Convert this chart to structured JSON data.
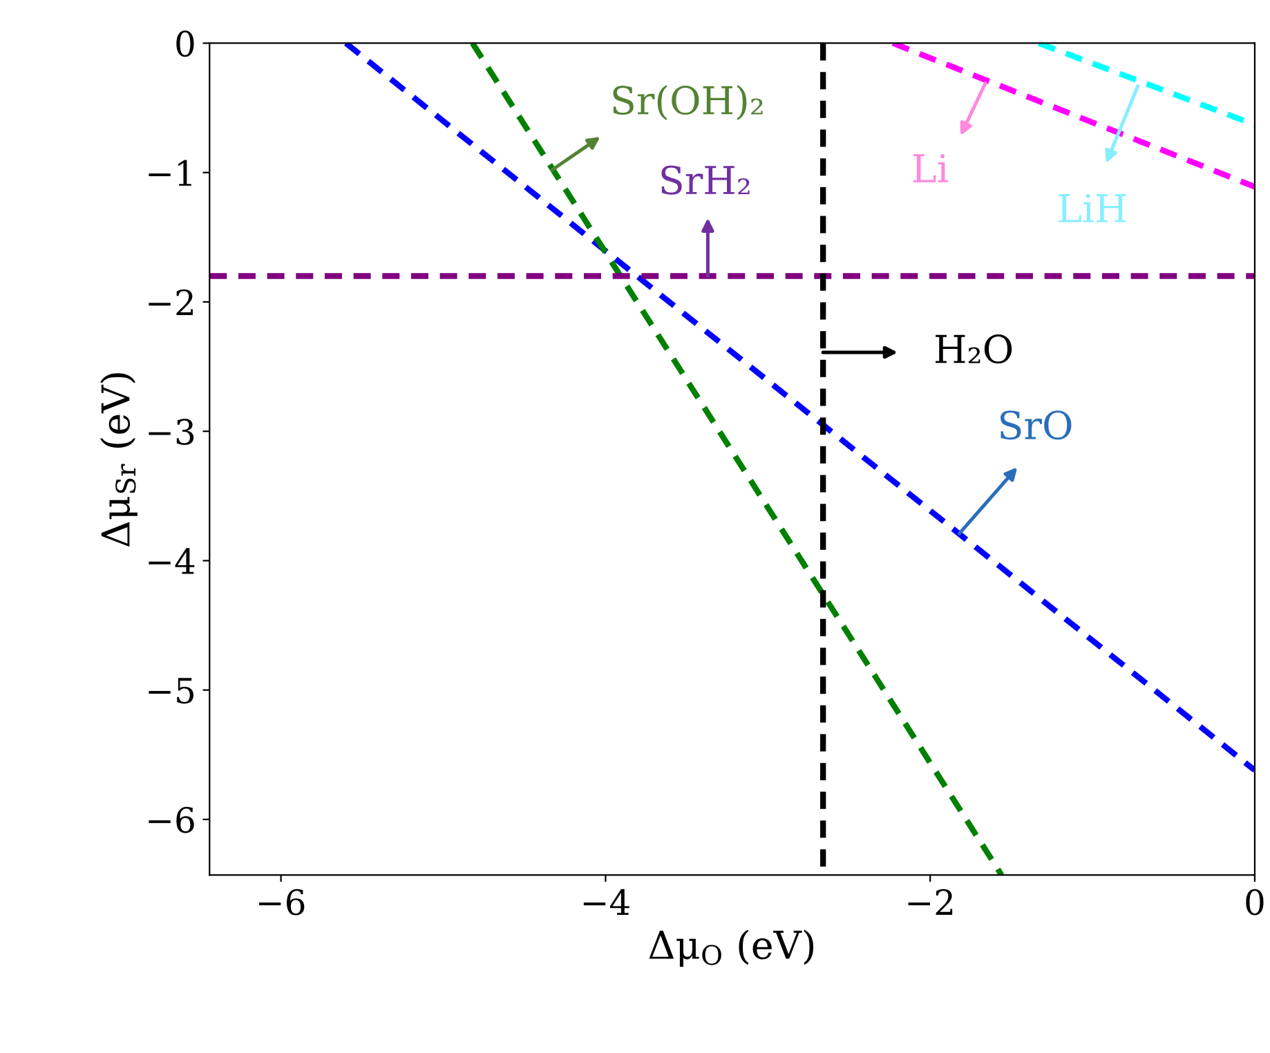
{
  "chart_data": {
    "type": "line",
    "xlabel": "Δμ$_{O}$ (eV)",
    "ylabel": "Δμ$_{Sr}$ (eV)",
    "xlim": [
      -6.44,
      0
    ],
    "ylim": [
      -6.43,
      0
    ],
    "xticks": [
      -6,
      -4,
      -2,
      0
    ],
    "yticks": [
      -6,
      -5,
      -4,
      -3,
      -2,
      -1,
      0
    ],
    "grid": false,
    "legend": false,
    "marker": "none",
    "line_style": "dashed",
    "series": [
      {
        "color": "#0000ff",
        "x": [
          -5.6,
          0
        ],
        "values": [
          0,
          -5.62
        ]
      },
      {
        "color": "#008000",
        "x": [
          -4.82,
          -1.56
        ],
        "values": [
          0,
          -6.43
        ]
      },
      {
        "color": "#800080",
        "x": [
          -6.44,
          0
        ],
        "values": [
          -1.8,
          -1.8
        ]
      },
      {
        "color": "#000000",
        "x": [
          -2.66,
          -2.66
        ],
        "values": [
          0,
          -6.43
        ]
      },
      {
        "color": "#ff00ff",
        "x": [
          -2.23,
          0
        ],
        "values": [
          0,
          -1.11
        ]
      },
      {
        "color": "#00ffff",
        "x": [
          -1.33,
          0
        ],
        "values": [
          0,
          -0.63
        ]
      }
    ],
    "annotations": [
      {
        "text": "SrO",
        "x": -1.82,
        "y": -3.79
      },
      {
        "text": "Sr(OH)₂",
        "x": -4.33,
        "y": -0.98
      },
      {
        "text": "SrH₂",
        "x": -3.37,
        "y": -1.8
      },
      {
        "text": "Li",
        "x": -1.66,
        "y": -0.31
      },
      {
        "text": "LiH",
        "x": -0.72,
        "y": -0.33
      },
      {
        "text": "H₂O",
        "x": -2.66,
        "y": -2.39
      }
    ]
  }
}
